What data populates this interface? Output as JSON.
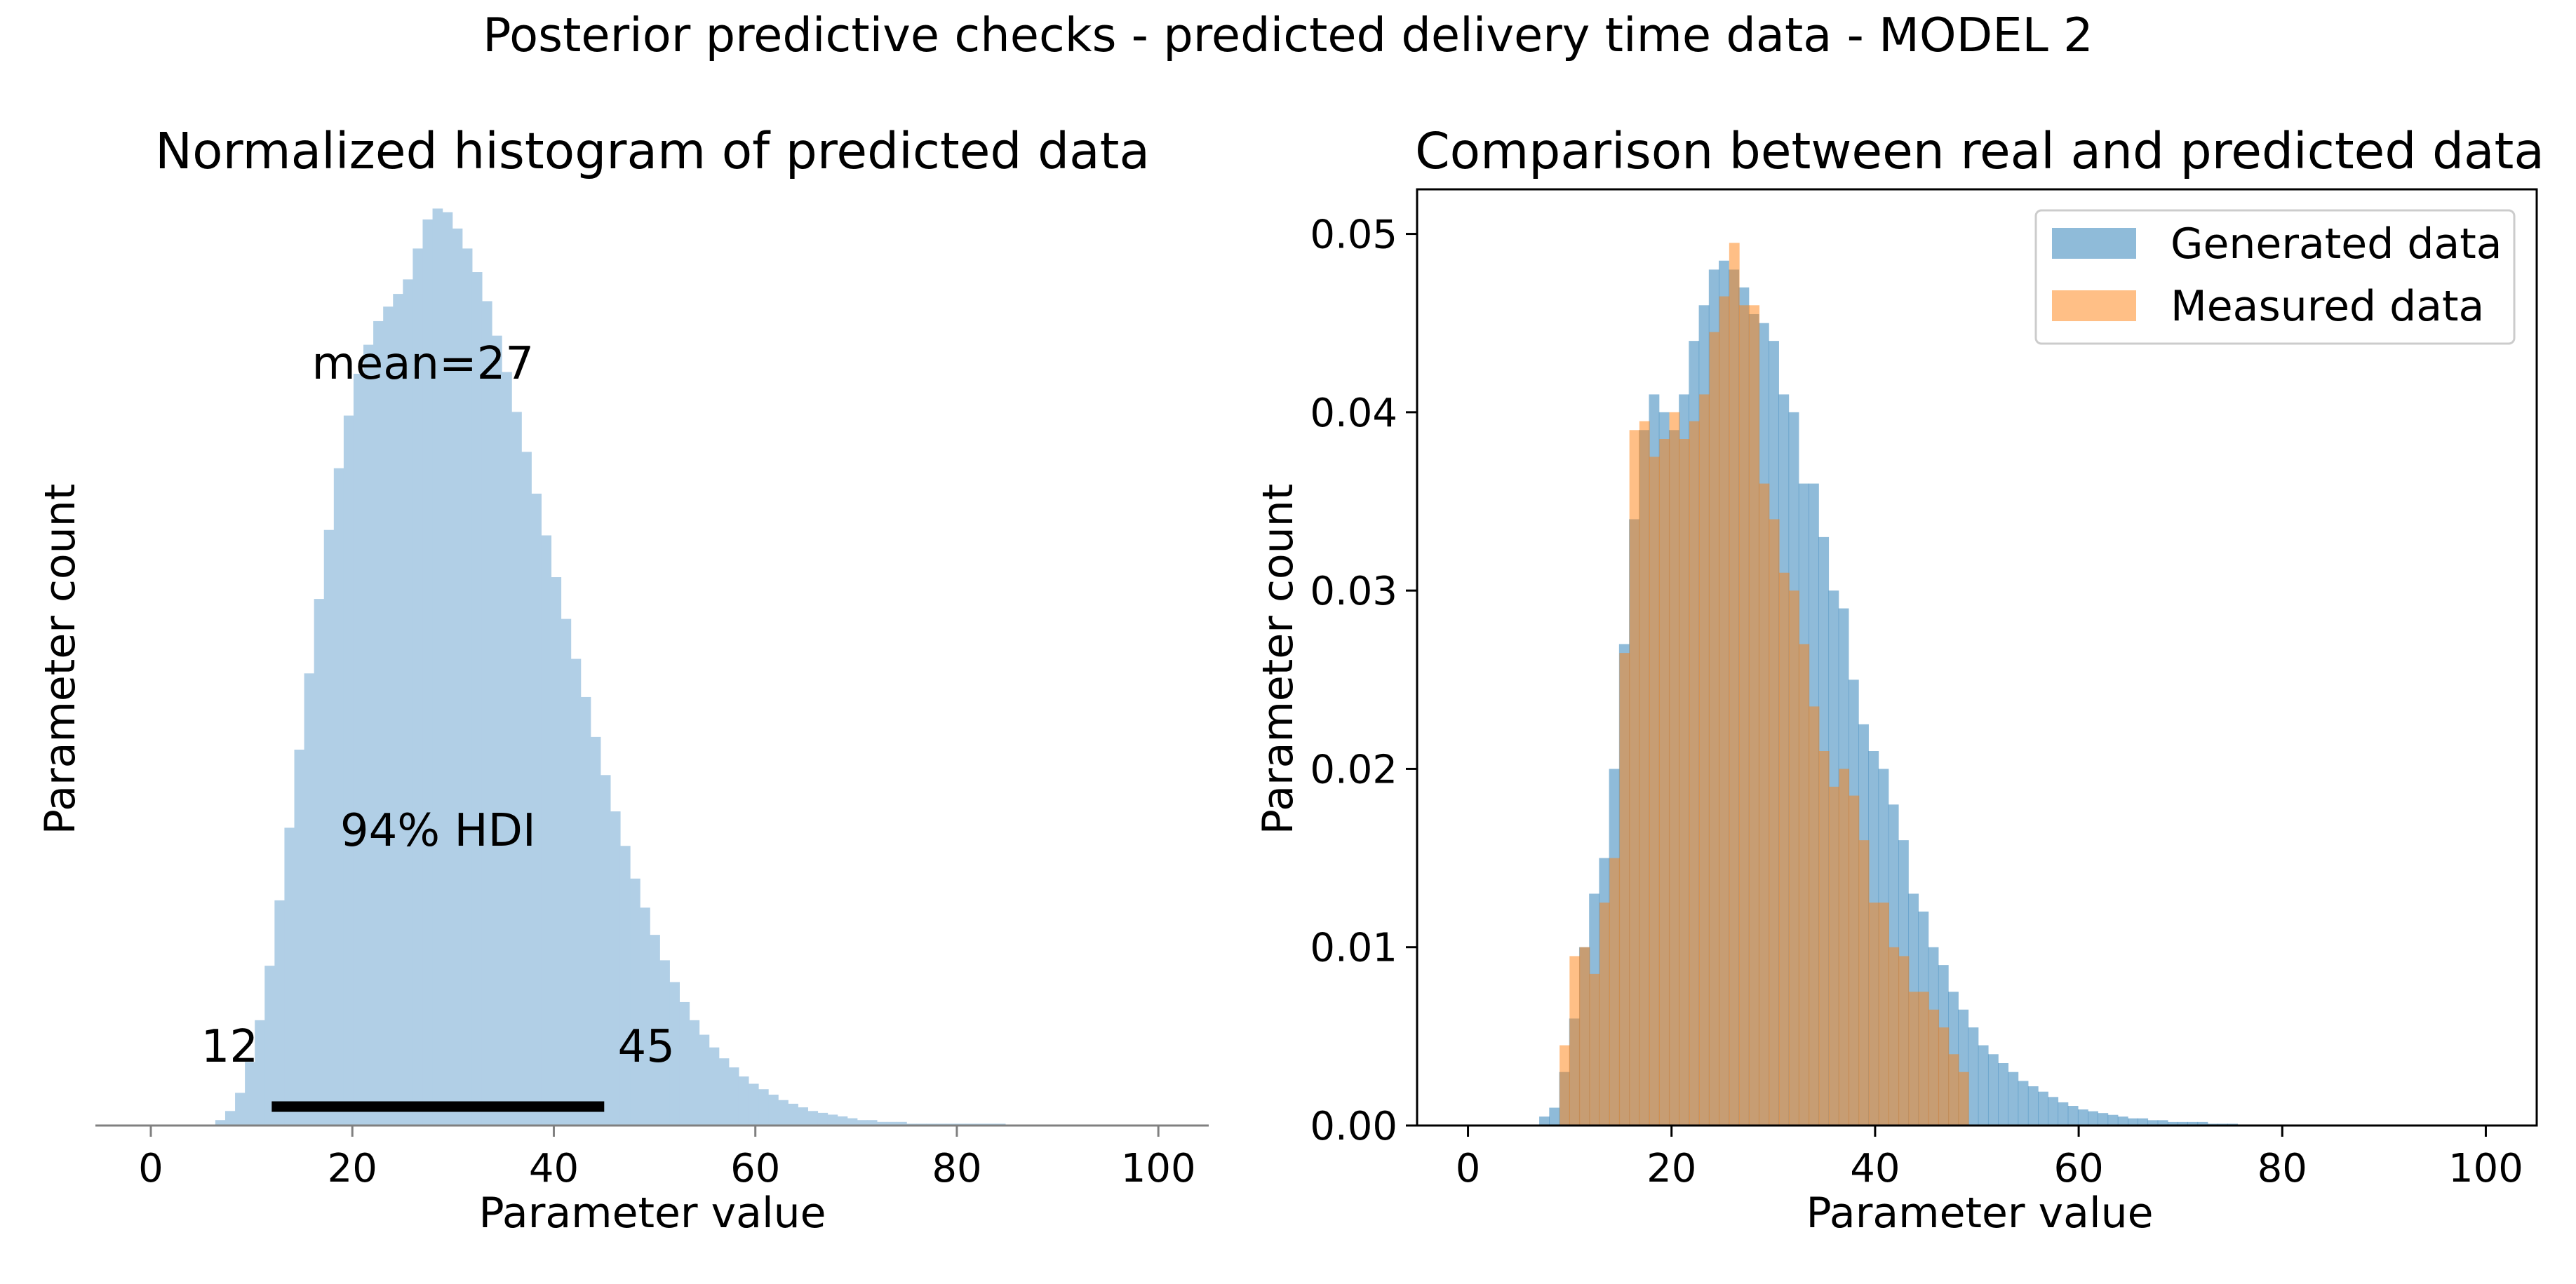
{
  "figure": {
    "suptitle": "Posterior predictive checks - predicted delivery time data - MODEL 2"
  },
  "colors": {
    "hist_left": "#b1cfe6",
    "generated": "#1f77b4",
    "measured": "#ff7f0e",
    "hdi_bar": "#000000",
    "axis": "#000000"
  },
  "chart_data": [
    {
      "type": "histogram",
      "title": "Normalized histogram of predicted data",
      "xlabel": "Parameter value",
      "ylabel": "Parameter count",
      "xlim": [
        -5.5,
        105
      ],
      "ylim": [
        0,
        0.0504
      ],
      "xticks": [
        0,
        20,
        40,
        60,
        80,
        100
      ],
      "xtick_labels": [
        "0",
        "20",
        "40",
        "60",
        "80",
        "100"
      ],
      "yaxis_visible": false,
      "bin_start": 6.4,
      "bin_width": 0.98,
      "values": [
        0.0003,
        0.0008,
        0.0018,
        0.0035,
        0.0058,
        0.0088,
        0.0124,
        0.0164,
        0.0207,
        0.0249,
        0.029,
        0.0328,
        0.0362,
        0.0391,
        0.0414,
        0.043,
        0.0443,
        0.0451,
        0.0458,
        0.0466,
        0.0483,
        0.0499,
        0.0505,
        0.0503,
        0.0494,
        0.0483,
        0.047,
        0.0454,
        0.0435,
        0.0415,
        0.0393,
        0.0371,
        0.0348,
        0.0325,
        0.0302,
        0.0279,
        0.0257,
        0.0236,
        0.0214,
        0.0193,
        0.0173,
        0.0154,
        0.0136,
        0.012,
        0.0105,
        0.0091,
        0.0079,
        0.0068,
        0.0058,
        0.005,
        0.0043,
        0.0037,
        0.0032,
        0.0027,
        0.0023,
        0.002,
        0.0017,
        0.0014,
        0.0012,
        0.001,
        0.0008,
        0.0007,
        0.0006,
        0.0005,
        0.0004,
        0.0003,
        0.0003,
        0.0002,
        0.0002,
        0.0002,
        0.0001,
        0.0001,
        0.0001,
        0.0001,
        0.0001,
        0.0001,
        0.0001,
        0.0001,
        0.0001,
        0.0001
      ],
      "annotations": {
        "mean_label": "mean=27",
        "mean": 27,
        "hdi_label": "94% HDI",
        "hdi_low": 12,
        "hdi_high": 45,
        "hdi_low_label": "12",
        "hdi_high_label": "45"
      }
    },
    {
      "type": "histogram",
      "title": "Comparison between real and predicted data",
      "xlabel": "Parameter value",
      "ylabel": "Parameter count",
      "xlim": [
        -5,
        105
      ],
      "ylim": [
        0,
        0.0525
      ],
      "xticks": [
        0,
        20,
        40,
        60,
        80,
        100
      ],
      "xtick_labels": [
        "0",
        "20",
        "40",
        "60",
        "80",
        "100"
      ],
      "yticks": [
        0.0,
        0.01,
        0.02,
        0.03,
        0.04,
        0.05
      ],
      "ytick_labels": [
        "0.00",
        "0.01",
        "0.02",
        "0.03",
        "0.04",
        "0.05"
      ],
      "legend_position": "upper right",
      "series": [
        {
          "name": "Generated data",
          "bin_start": 7,
          "bin_width": 0.98,
          "alpha": 0.5,
          "values": [
            0.0005,
            0.001,
            0.003,
            0.006,
            0.01,
            0.013,
            0.015,
            0.02,
            0.027,
            0.034,
            0.039,
            0.041,
            0.04,
            0.039,
            0.041,
            0.044,
            0.046,
            0.048,
            0.0485,
            0.048,
            0.047,
            0.0455,
            0.045,
            0.044,
            0.041,
            0.04,
            0.036,
            0.036,
            0.033,
            0.03,
            0.029,
            0.025,
            0.0225,
            0.021,
            0.02,
            0.018,
            0.016,
            0.013,
            0.012,
            0.01,
            0.009,
            0.0075,
            0.0065,
            0.0055,
            0.0045,
            0.004,
            0.0035,
            0.003,
            0.0025,
            0.0022,
            0.0019,
            0.0016,
            0.0013,
            0.0011,
            0.0009,
            0.0008,
            0.0007,
            0.0006,
            0.0005,
            0.0004,
            0.0004,
            0.0003,
            0.0003,
            0.0002,
            0.0002,
            0.0002,
            0.0002,
            0.0001,
            0.0001,
            0.0001
          ]
        },
        {
          "name": "Measured data",
          "bin_start": 9,
          "bin_width": 0.98,
          "alpha": 0.5,
          "values": [
            0.0045,
            0.0095,
            0.01,
            0.0085,
            0.0125,
            0.015,
            0.0265,
            0.039,
            0.0395,
            0.0375,
            0.0385,
            0.04,
            0.0385,
            0.0395,
            0.041,
            0.0445,
            0.0465,
            0.0495,
            0.046,
            0.046,
            0.036,
            0.034,
            0.031,
            0.03,
            0.027,
            0.0235,
            0.021,
            0.019,
            0.02,
            0.0185,
            0.016,
            0.0125,
            0.0125,
            0.01,
            0.0095,
            0.0075,
            0.0075,
            0.0065,
            0.0055,
            0.004,
            0.003
          ]
        }
      ]
    }
  ]
}
